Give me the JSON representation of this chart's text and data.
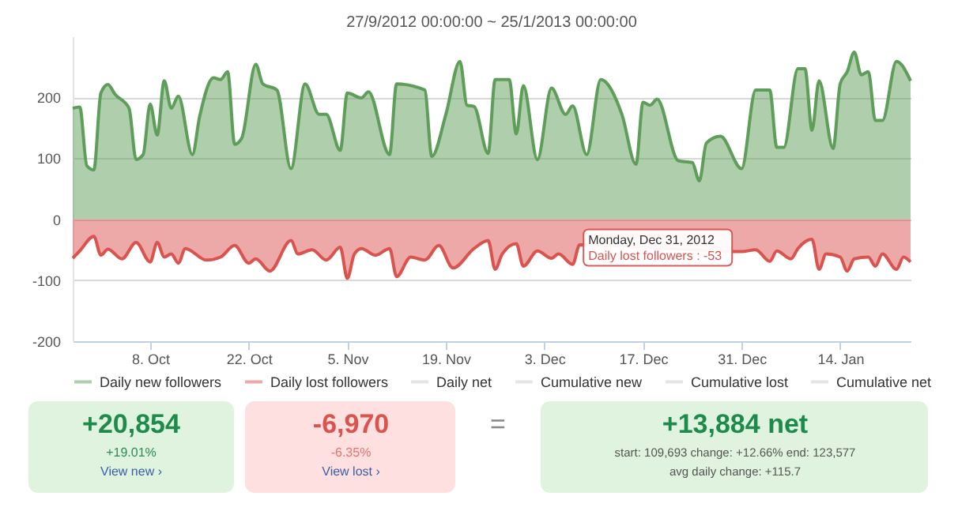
{
  "chart_data": [
    {
      "type": "area",
      "title": "27/9/2012 00:00:00 ~ 25/1/2013 00:00:00",
      "xlim": [
        "2012-09-27",
        "2013-01-24"
      ],
      "ylim": [
        -200,
        300
      ],
      "yticks": [
        -200,
        -100,
        0,
        100,
        200
      ],
      "xticks": [
        {
          "value": "2012-10-08",
          "label": "8. Oct"
        },
        {
          "value": "2012-10-22",
          "label": "22. Oct"
        },
        {
          "value": "2012-11-05",
          "label": "5. Nov"
        },
        {
          "value": "2012-11-19",
          "label": "19. Nov"
        },
        {
          "value": "2012-12-03",
          "label": "3. Dec"
        },
        {
          "value": "2012-12-17",
          "label": "17. Dec"
        },
        {
          "value": "2012-12-31",
          "label": "31. Dec"
        },
        {
          "value": "2013-01-14",
          "label": "14. Jan"
        }
      ],
      "grid": "y",
      "legend": "bottom",
      "marker": "none",
      "line_style": "solid",
      "series": [
        {
          "name": "Daily new followers",
          "color": "#5f9e5a",
          "x": [
            "2012-09-27",
            "2012-09-28",
            "2012-09-29",
            "2012-09-30",
            "2012-10-01",
            "2012-10-02",
            "2012-10-03",
            "2012-10-05",
            "2012-10-06",
            "2012-10-07",
            "2012-10-08",
            "2012-10-09",
            "2012-10-10",
            "2012-10-11",
            "2012-10-12",
            "2012-10-14",
            "2012-10-15",
            "2012-10-17",
            "2012-10-18",
            "2012-10-19",
            "2012-10-20",
            "2012-10-21",
            "2012-10-23",
            "2012-10-24",
            "2012-10-26",
            "2012-10-28",
            "2012-10-30",
            "2012-11-01",
            "2012-11-02",
            "2012-11-04",
            "2012-11-05",
            "2012-11-07",
            "2012-11-08",
            "2012-11-11",
            "2012-11-12",
            "2012-11-16",
            "2012-11-17",
            "2012-11-19",
            "2012-11-21",
            "2012-11-22",
            "2012-11-23",
            "2012-11-25",
            "2012-11-26",
            "2012-11-28",
            "2012-11-29",
            "2012-11-30",
            "2012-12-02",
            "2012-12-04",
            "2012-12-06",
            "2012-12-07",
            "2012-12-09",
            "2012-12-11",
            "2012-12-14",
            "2012-12-16",
            "2012-12-17",
            "2012-12-18",
            "2012-12-19",
            "2012-12-22",
            "2012-12-24",
            "2012-12-25",
            "2012-12-26",
            "2012-12-28",
            "2012-12-31",
            "2013-01-02",
            "2013-01-04",
            "2013-01-05",
            "2013-01-06",
            "2013-01-08",
            "2013-01-09",
            "2013-01-10",
            "2013-01-11",
            "2013-01-13",
            "2013-01-14",
            "2013-01-15",
            "2013-01-16",
            "2013-01-17",
            "2013-01-18",
            "2013-01-19",
            "2013-01-20",
            "2013-01-22",
            "2013-01-24"
          ],
          "values": [
            182,
            184,
            88,
            81,
            207,
            221,
            205,
            182,
            98,
            106,
            189,
            138,
            227,
            182,
            202,
            106,
            167,
            232,
            229,
            242,
            123,
            133,
            254,
            222,
            212,
            83,
            222,
            172,
            172,
            113,
            207,
            199,
            209,
            106,
            222,
            212,
            103,
            172,
            259,
            187,
            185,
            108,
            229,
            229,
            140,
            219,
            98,
            215,
            172,
            186,
            106,
            229,
            172,
            90,
            192,
            187,
            197,
            96,
            93,
            63,
            125,
            136,
            83,
            212,
            212,
            118,
            118,
            247,
            247,
            146,
            227,
            116,
            222,
            242,
            274,
            237,
            242,
            162,
            162,
            259,
            227
          ]
        },
        {
          "name": "Daily lost followers",
          "color": "#d9534f",
          "x": [
            "2012-09-27",
            "2012-09-28",
            "2012-09-30",
            "2012-10-01",
            "2012-10-02",
            "2012-10-04",
            "2012-10-06",
            "2012-10-08",
            "2012-10-09",
            "2012-10-10",
            "2012-10-11",
            "2012-10-12",
            "2012-10-13",
            "2012-10-16",
            "2012-10-18",
            "2012-10-20",
            "2012-10-22",
            "2012-10-23",
            "2012-10-25",
            "2012-10-28",
            "2012-10-29",
            "2012-10-31",
            "2012-11-02",
            "2012-11-04",
            "2012-11-05",
            "2012-11-06",
            "2012-11-07",
            "2012-11-09",
            "2012-11-11",
            "2012-11-12",
            "2012-11-14",
            "2012-11-16",
            "2012-11-18",
            "2012-11-20",
            "2012-11-23",
            "2012-11-25",
            "2012-11-26",
            "2012-11-27",
            "2012-11-29",
            "2012-11-30",
            "2012-12-02",
            "2012-12-04",
            "2012-12-05",
            "2012-12-07",
            "2012-12-08",
            "2012-12-31",
            "2013-01-02",
            "2013-01-04",
            "2013-01-05",
            "2013-01-07",
            "2013-01-08",
            "2013-01-10",
            "2013-01-11",
            "2013-01-12",
            "2013-01-14",
            "2013-01-15",
            "2013-01-16",
            "2013-01-18",
            "2013-01-19",
            "2013-01-20",
            "2013-01-22",
            "2013-01-23",
            "2013-01-24"
          ],
          "values": [
            -64,
            -52,
            -28,
            -59,
            -49,
            -65,
            -38,
            -70,
            -38,
            -62,
            -57,
            -72,
            -48,
            -67,
            -62,
            -43,
            -72,
            -65,
            -85,
            -35,
            -57,
            -50,
            -67,
            -46,
            -97,
            -57,
            -48,
            -59,
            -48,
            -94,
            -62,
            -67,
            -43,
            -80,
            -48,
            -35,
            -82,
            -57,
            -40,
            -77,
            -52,
            -64,
            -57,
            -74,
            -42,
            -53,
            -50,
            -69,
            -52,
            -65,
            -48,
            -33,
            -82,
            -57,
            -62,
            -85,
            -65,
            -62,
            -77,
            -57,
            -82,
            -62,
            -70
          ]
        },
        {
          "name": "Daily net",
          "color": "#cccccc"
        },
        {
          "name": "Cumulative new",
          "color": "#cccccc"
        },
        {
          "name": "Cumulative lost",
          "color": "#cccccc"
        },
        {
          "name": "Cumulative net",
          "color": "#cccccc"
        }
      ],
      "annotations": [
        {
          "text": "Monday, Dec 31, 2012",
          "x": "2012-12-31",
          "y": -53
        },
        {
          "text": "Daily lost followers : -53",
          "x": "2012-12-31",
          "y": -53
        }
      ]
    },
    {
      "type": "other",
      "annotations": [
        "+20,854",
        "+19.01%",
        "View new ›",
        "-6,970",
        "-6.35%",
        "View lost ›",
        "=",
        "+13,884 net",
        "start: 109,693   change: +12.66%   end: 123,577",
        "avg daily change: +115.7"
      ]
    }
  ]
}
